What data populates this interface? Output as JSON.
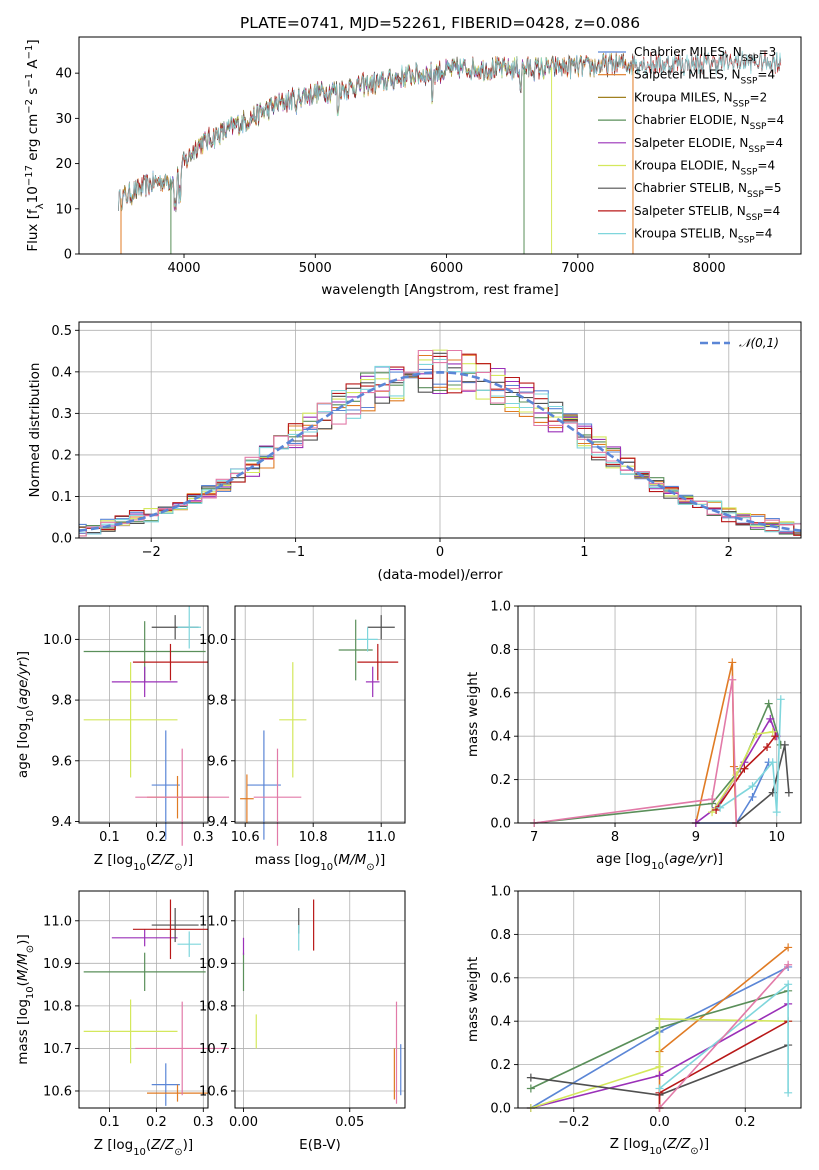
{
  "figure": {
    "title": "PLATE=0741, MJD=52261, FIBERID=0428, z=0.086"
  },
  "colors": {
    "blue": "#5b86d6",
    "orange": "#e07b24",
    "olive": "#a08020",
    "green": "#5a8f5a",
    "purple": "#9a30b8",
    "yellow": "#d4e85c",
    "gray": "#505050",
    "red": "#b81818",
    "cyan": "#7fd6dc",
    "pink": "#e27aa8"
  },
  "chart_data": [
    {
      "id": "spectrum",
      "type": "line",
      "title": "PLATE=0741, MJD=52261, FIBERID=0428, z=0.086",
      "xlabel": "wavelength [Angstrom, rest frame]",
      "ylabel": "Flux [f_λ 10^-17 erg cm^-2 s^-1 A^-1]",
      "ylabel_parts": [
        "Flux [f",
        "λ",
        "10",
        "−17",
        " erg cm",
        "−2",
        " s",
        "−1",
        " A",
        "−1",
        "]"
      ],
      "xlim": [
        3200,
        8700
      ],
      "ylim": [
        0,
        48
      ],
      "xticks": [
        4000,
        5000,
        6000,
        7000,
        8000
      ],
      "yticks": [
        0,
        10,
        20,
        30,
        40
      ],
      "grid": false,
      "legend_position": "upper-right",
      "continuum": {
        "x": [
          3500,
          3600,
          3700,
          3800,
          3900,
          4000,
          4100,
          4300,
          4500,
          4700,
          4900,
          5100,
          5300,
          5500,
          5700,
          5900,
          6100,
          6300,
          6500,
          6700,
          6900,
          7100,
          7300,
          7500,
          7700,
          7900,
          8100,
          8300,
          8500
        ],
        "y": [
          12,
          13.5,
          15,
          16,
          16.5,
          20,
          24,
          27,
          30,
          33,
          35,
          36,
          37,
          38,
          39.5,
          40,
          41,
          41,
          41,
          41,
          41.5,
          41.5,
          42,
          42,
          42,
          42,
          42.5,
          42.5,
          42.5
        ]
      },
      "series": [
        {
          "name": "Chabrier MILES",
          "nssp": "3",
          "color": "blue",
          "xrange": [
            3520,
            7400
          ]
        },
        {
          "name": "Salpeter MILES",
          "nssp": "4",
          "color": "orange",
          "xrange": [
            3520,
            7420
          ]
        },
        {
          "name": "Kroupa MILES",
          "nssp": "2",
          "color": "olive",
          "xrange": [
            3520,
            7400
          ]
        },
        {
          "name": "Chabrier ELODIE",
          "nssp": "4",
          "color": "green",
          "xrange": [
            3900,
            6800
          ]
        },
        {
          "name": "Salpeter ELODIE",
          "nssp": "4",
          "color": "purple",
          "xrange": [
            3900,
            6800
          ]
        },
        {
          "name": "Kroupa ELODIE",
          "nssp": "4",
          "color": "yellow",
          "xrange": [
            3900,
            6800
          ]
        },
        {
          "name": "Chabrier STELIB",
          "nssp": "5",
          "color": "gray",
          "xrange": [
            3500,
            8550
          ]
        },
        {
          "name": "Salpeter STELIB",
          "nssp": "4",
          "color": "red",
          "xrange": [
            3500,
            8550
          ]
        },
        {
          "name": "Kroupa STELIB",
          "nssp": "4",
          "color": "cyan",
          "xrange": [
            3500,
            8550
          ]
        }
      ],
      "drops": [
        {
          "x": 3520,
          "color": "orange"
        },
        {
          "x": 3900,
          "color": "green"
        },
        {
          "x": 6800,
          "color": "yellow"
        },
        {
          "x": 6590,
          "color": "green"
        },
        {
          "x": 7420,
          "color": "orange"
        }
      ]
    },
    {
      "id": "residuals",
      "type": "step",
      "xlabel": "(data-model)/error",
      "ylabel": "Normed distribution",
      "xlim": [
        -2.5,
        2.5
      ],
      "ylim": [
        0,
        0.52
      ],
      "xticks": [
        -2,
        -1,
        0,
        1,
        2
      ],
      "xtick_labels": [
        "−2",
        "−1",
        "0",
        "1",
        "2"
      ],
      "yticks": [
        0.0,
        0.1,
        0.2,
        0.3,
        0.4,
        0.5
      ],
      "grid": true,
      "legend_position": "upper-right",
      "gaussian": {
        "name": "𝒩(0,1)",
        "mean": 0,
        "sigma": 1,
        "color": "#5b86d6"
      },
      "bin_width": 0.1
    },
    {
      "id": "age_vs_Z",
      "type": "errorbar",
      "xlabel": "Z [log10(Z/Z⊙)]",
      "ylabel": "age  [log10(age/yr)]",
      "xlim": [
        0.035,
        0.31
      ],
      "ylim": [
        9.395,
        10.11
      ],
      "xticks": [
        0.1,
        0.2,
        0.3
      ],
      "yticks": [
        9.4,
        9.6,
        9.8,
        10.0
      ],
      "grid": true,
      "points": [
        {
          "color": "blue",
          "x": 0.22,
          "xerr": 0.03,
          "y": 9.52,
          "yerr": 0.18
        },
        {
          "color": "orange",
          "x": 0.245,
          "xerr": 0.065,
          "y": 9.48,
          "yerr": 0.07
        },
        {
          "color": "green",
          "x": 0.175,
          "xerr": 0.13,
          "y": 9.96,
          "yerr": 0.1
        },
        {
          "color": "purple",
          "x": 0.175,
          "xerr": 0.07,
          "y": 9.86,
          "yerr": 0.05
        },
        {
          "color": "yellow",
          "x": 0.145,
          "xerr": 0.1,
          "y": 9.735,
          "yerr": 0.19
        },
        {
          "color": "gray",
          "x": 0.24,
          "xerr": 0.05,
          "y": 10.04,
          "yerr": 0.04
        },
        {
          "color": "red",
          "x": 0.23,
          "xerr": 0.08,
          "y": 9.925,
          "yerr": 0.06
        },
        {
          "color": "cyan",
          "x": 0.27,
          "xerr": 0.025,
          "y": 10.04,
          "yerr": 0.07
        },
        {
          "color": "pink",
          "x": 0.255,
          "xerr": 0.1,
          "y": 9.48,
          "yerr": 0.16
        }
      ]
    },
    {
      "id": "age_vs_mass",
      "type": "errorbar",
      "xlabel": "mass [log10(M/M⊙)]",
      "xlim": [
        10.57,
        11.07
      ],
      "ylim": [
        9.395,
        10.11
      ],
      "xticks": [
        10.6,
        10.8,
        11.0
      ],
      "yticks": [
        9.4,
        9.6,
        9.8,
        10.0
      ],
      "grid": true,
      "points": [
        {
          "color": "blue",
          "x": 10.655,
          "xerr": 0.05,
          "y": 9.52,
          "yerr": 0.18
        },
        {
          "color": "orange",
          "x": 10.605,
          "xerr": 0.02,
          "y": 9.475,
          "yerr": 0.08
        },
        {
          "color": "green",
          "x": 10.925,
          "xerr": 0.05,
          "y": 9.965,
          "yerr": 0.1
        },
        {
          "color": "purple",
          "x": 10.975,
          "xerr": 0.02,
          "y": 9.86,
          "yerr": 0.05
        },
        {
          "color": "yellow",
          "x": 10.74,
          "xerr": 0.04,
          "y": 9.735,
          "yerr": 0.19
        },
        {
          "color": "gray",
          "x": 11.0,
          "xerr": 0.04,
          "y": 10.04,
          "yerr": 0.04
        },
        {
          "color": "red",
          "x": 10.99,
          "xerr": 0.06,
          "y": 9.925,
          "yerr": 0.06
        },
        {
          "color": "cyan",
          "x": 10.96,
          "xerr": 0.03,
          "y": 10.0,
          "yerr": 0.04
        },
        {
          "color": "pink",
          "x": 10.695,
          "xerr": 0.07,
          "y": 9.48,
          "yerr": 0.16
        }
      ]
    },
    {
      "id": "weight_vs_age",
      "type": "line",
      "xlabel": "age  [log10(age/yr)]",
      "ylabel": "mass weight",
      "xlim": [
        6.8,
        10.3
      ],
      "ylim": [
        0,
        1
      ],
      "xticks": [
        7,
        8,
        9,
        10
      ],
      "yticks": [
        0.0,
        0.2,
        0.4,
        0.6,
        0.8,
        1.0
      ],
      "grid": true,
      "series": [
        {
          "color": "blue",
          "x": [
            9.0,
            9.5,
            9.7,
            9.9
          ],
          "y": [
            0.0,
            0.0,
            0.12,
            0.28
          ]
        },
        {
          "color": "orange",
          "x": [
            9.0,
            9.45,
            9.47,
            9.5
          ],
          "y": [
            0.0,
            0.74,
            0.26,
            0.0
          ]
        },
        {
          "color": "green",
          "x": [
            7.0,
            9.2,
            9.55,
            9.9,
            10.05
          ],
          "y": [
            0.0,
            0.09,
            0.25,
            0.55,
            0.36
          ]
        },
        {
          "color": "purple",
          "x": [
            9.0,
            9.25,
            9.6,
            9.92,
            10.0
          ],
          "y": [
            0.0,
            0.07,
            0.28,
            0.48,
            0.4
          ]
        },
        {
          "color": "yellow",
          "x": [
            9.2,
            9.5,
            9.75,
            9.95
          ],
          "y": [
            0.05,
            0.22,
            0.41,
            0.42
          ]
        },
        {
          "color": "gray",
          "x": [
            9.5,
            9.95,
            10.1,
            10.15
          ],
          "y": [
            0.0,
            0.14,
            0.36,
            0.14
          ]
        },
        {
          "color": "red",
          "x": [
            9.25,
            9.6,
            9.88,
            9.98
          ],
          "y": [
            0.06,
            0.25,
            0.35,
            0.4
          ]
        },
        {
          "color": "cyan",
          "x": [
            9.3,
            9.7,
            9.95,
            10.0,
            10.05
          ],
          "y": [
            0.07,
            0.17,
            0.28,
            0.05,
            0.57
          ]
        },
        {
          "color": "pink",
          "x": [
            7.0,
            9.2,
            9.45,
            9.5
          ],
          "y": [
            0.0,
            0.11,
            0.66,
            0.0
          ]
        }
      ]
    },
    {
      "id": "mass_vs_Z",
      "type": "errorbar",
      "xlabel": "Z [log10(Z/Z⊙)]",
      "ylabel": "mass [log10(M/M⊙)]",
      "xlim": [
        0.035,
        0.31
      ],
      "ylim": [
        10.56,
        11.07
      ],
      "xticks": [
        0.1,
        0.2,
        0.3
      ],
      "yticks": [
        10.6,
        10.7,
        10.8,
        10.9,
        11.0
      ],
      "grid": true,
      "points": [
        {
          "color": "blue",
          "x": 0.22,
          "xerr": 0.03,
          "y": 10.615,
          "yerr": 0.05
        },
        {
          "color": "orange",
          "x": 0.245,
          "xerr": 0.065,
          "y": 10.595,
          "yerr": 0.02
        },
        {
          "color": "green",
          "x": 0.175,
          "xerr": 0.13,
          "y": 10.88,
          "yerr": 0.045
        },
        {
          "color": "purple",
          "x": 0.175,
          "xerr": 0.07,
          "y": 10.96,
          "yerr": 0.02
        },
        {
          "color": "yellow",
          "x": 0.145,
          "xerr": 0.1,
          "y": 10.74,
          "yerr": 0.075
        },
        {
          "color": "gray",
          "x": 0.24,
          "xerr": 0.05,
          "y": 10.99,
          "yerr": 0.04
        },
        {
          "color": "red",
          "x": 0.23,
          "xerr": 0.08,
          "y": 10.98,
          "yerr": 0.07
        },
        {
          "color": "cyan",
          "x": 0.27,
          "xerr": 0.025,
          "y": 10.945,
          "yerr": 0.03
        },
        {
          "color": "pink",
          "x": 0.255,
          "xerr": 0.1,
          "y": 10.7,
          "yerr": 0.11
        }
      ]
    },
    {
      "id": "mass_vs_ebv",
      "type": "errorbar",
      "xlabel": "E(B-V)",
      "xlim": [
        -0.004,
        0.076
      ],
      "ylim": [
        10.56,
        11.07
      ],
      "xticks": [
        0.0,
        0.05
      ],
      "xtick_labels": [
        "0.00",
        "0.05"
      ],
      "yticks": [
        10.6,
        10.7,
        10.8,
        10.9,
        11.0
      ],
      "grid": true,
      "points": [
        {
          "color": "blue",
          "x": 0.074,
          "xerr": 0,
          "y": 10.65,
          "yerr": 0.06
        },
        {
          "color": "orange",
          "x": 0.071,
          "xerr": 0,
          "y": 10.64,
          "yerr": 0.06
        },
        {
          "color": "green",
          "x": 0.0,
          "xerr": 0,
          "y": 10.88,
          "yerr": 0.045
        },
        {
          "color": "purple",
          "x": 0.0,
          "xerr": 0,
          "y": 10.94,
          "yerr": 0.02
        },
        {
          "color": "yellow",
          "x": 0.006,
          "xerr": 0,
          "y": 10.74,
          "yerr": 0.04
        },
        {
          "color": "gray",
          "x": 0.026,
          "xerr": 0,
          "y": 11.0,
          "yerr": 0.03
        },
        {
          "color": "red",
          "x": 0.033,
          "xerr": 0,
          "y": 10.99,
          "yerr": 0.06
        },
        {
          "color": "cyan",
          "x": 0.026,
          "xerr": 0,
          "y": 10.96,
          "yerr": 0.03
        },
        {
          "color": "pink",
          "x": 0.072,
          "xerr": 0,
          "y": 10.69,
          "yerr": 0.12
        }
      ]
    },
    {
      "id": "weight_vs_Z",
      "type": "line",
      "xlabel": "Z [log10(Z/Z⊙)]",
      "ylabel": "mass weight",
      "xlim": [
        -0.33,
        0.33
      ],
      "ylim": [
        0,
        1
      ],
      "xticks": [
        -0.2,
        0.0,
        0.2
      ],
      "xtick_labels": [
        "−0.2",
        "0.0",
        "0.2"
      ],
      "yticks": [
        0.0,
        0.2,
        0.4,
        0.6,
        0.8,
        1.0
      ],
      "grid": true,
      "series": [
        {
          "color": "blue",
          "x": [
            -0.3,
            0.0,
            0.3
          ],
          "y": [
            0.0,
            0.35,
            0.65
          ]
        },
        {
          "color": "orange",
          "x": [
            0.0,
            0.0,
            0.3
          ],
          "y": [
            0.0,
            0.26,
            0.74
          ]
        },
        {
          "color": "green",
          "x": [
            -0.3,
            0.0,
            0.3
          ],
          "y": [
            0.09,
            0.37,
            0.54
          ]
        },
        {
          "color": "purple",
          "x": [
            -0.3,
            0.0,
            0.3
          ],
          "y": [
            0.0,
            0.15,
            0.48
          ]
        },
        {
          "color": "yellow",
          "x": [
            -0.3,
            0.0,
            0.0,
            0.3
          ],
          "y": [
            0.0,
            0.19,
            0.41,
            0.4
          ]
        },
        {
          "color": "gray",
          "x": [
            -0.3,
            0.0,
            0.3
          ],
          "y": [
            0.14,
            0.06,
            0.29
          ]
        },
        {
          "color": "red",
          "x": [
            0.0,
            0.0,
            0.3
          ],
          "y": [
            0.0,
            0.07,
            0.4
          ]
        },
        {
          "color": "cyan",
          "x": [
            0.0,
            0.3,
            0.3
          ],
          "y": [
            0.09,
            0.57,
            0.07
          ]
        },
        {
          "color": "pink",
          "x": [
            0.0,
            0.3
          ],
          "y": [
            0.0,
            0.66
          ]
        }
      ]
    }
  ]
}
